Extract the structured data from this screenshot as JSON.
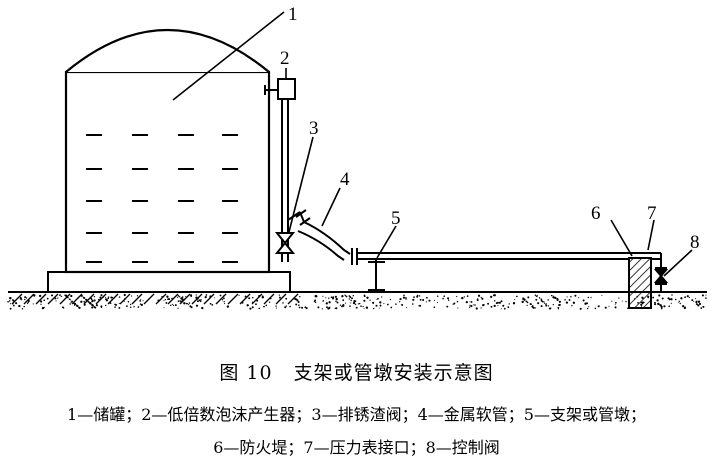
{
  "figure": {
    "caption_number": "图 10",
    "caption_title": "支架或管墩安装示意图",
    "legend_line1": "1—储罐；2—低倍数泡沫产生器；3—排锈渣阀；4—金属软管；5—支架或管墩；",
    "legend_line2": "6—防火堤；7—压力表接口；8—控制阀"
  },
  "labels": [
    "1",
    "2",
    "3",
    "4",
    "5",
    "6",
    "7",
    "8"
  ]
}
